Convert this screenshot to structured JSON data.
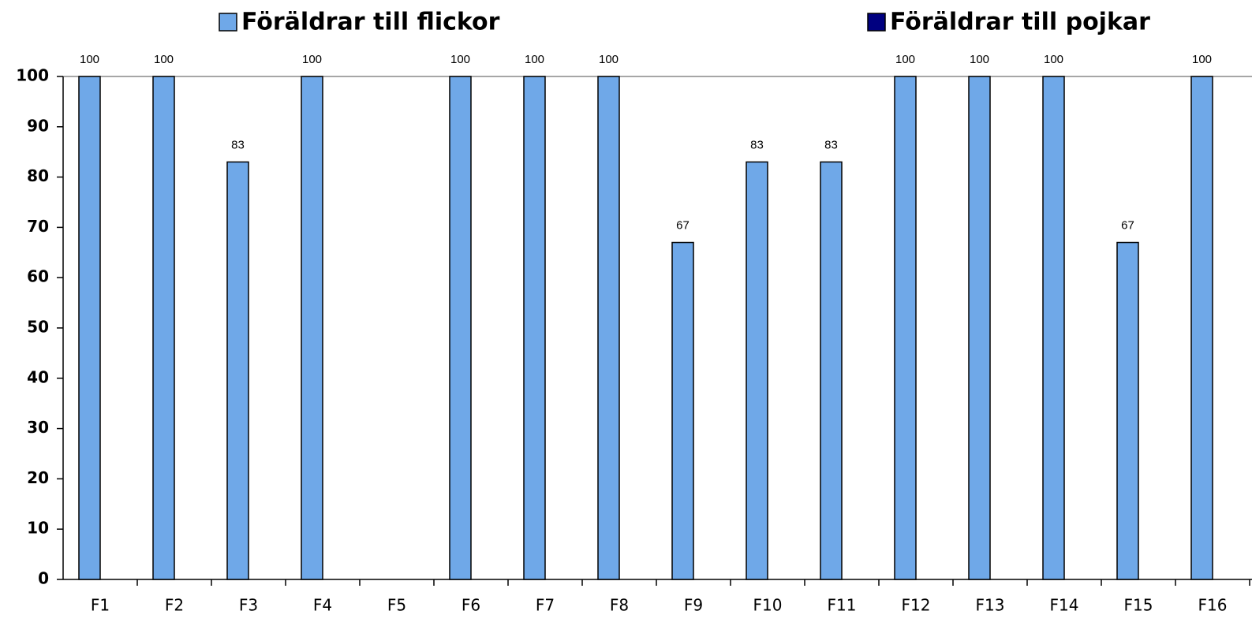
{
  "chart_data": {
    "type": "bar",
    "categories": [
      "F1",
      "F2",
      "F3",
      "F4",
      "F5",
      "F6",
      "F7",
      "F8",
      "F9",
      "F10",
      "F11",
      "F12",
      "F13",
      "F14",
      "F15",
      "F16"
    ],
    "series": [
      {
        "name": "Föräldrar till flickor",
        "color": "#6fa8e8",
        "values": [
          100,
          100,
          83,
          100,
          null,
          100,
          100,
          100,
          67,
          83,
          83,
          100,
          100,
          100,
          67,
          100
        ]
      },
      {
        "name": "Föräldrar till pojkar",
        "color": "#000080",
        "values": [
          null,
          null,
          null,
          null,
          null,
          null,
          null,
          null,
          null,
          null,
          null,
          null,
          null,
          null,
          null,
          null
        ]
      }
    ],
    "ylim": [
      0,
      100
    ],
    "yticks": [
      0,
      10,
      20,
      30,
      40,
      50,
      60,
      70,
      80,
      90,
      100
    ],
    "grid": false,
    "legend": "top"
  }
}
